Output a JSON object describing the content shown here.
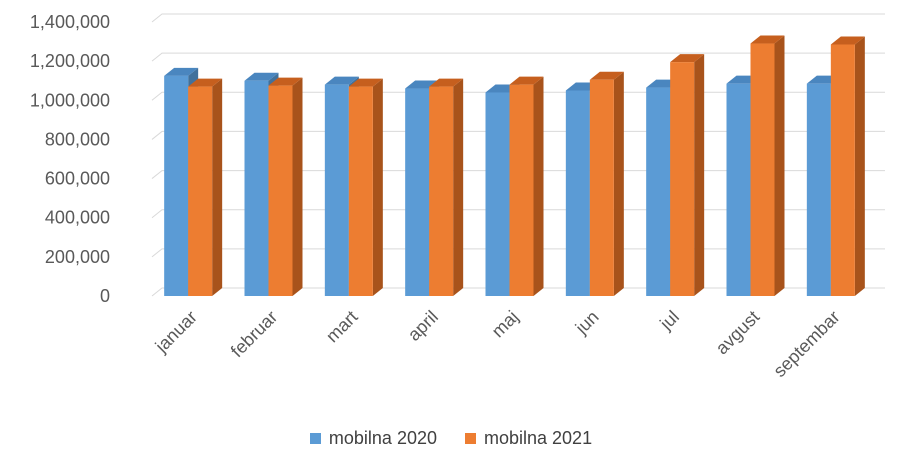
{
  "chart_data": {
    "type": "bar",
    "categories": [
      "januar",
      "februar",
      "mart",
      "april",
      "maj",
      "jun",
      "jul",
      "avgust",
      "septembar"
    ],
    "series": [
      {
        "name": "mobilna 2020",
        "color": "#5B9BD5",
        "side_color": "#41719C",
        "top_color": "#4A86BF",
        "values": [
          1125000,
          1100000,
          1080000,
          1060000,
          1040000,
          1050000,
          1065000,
          1085000,
          1085000
        ]
      },
      {
        "name": "mobilna 2021",
        "color": "#ED7D31",
        "side_color": "#A8531B",
        "top_color": "#C65F1E",
        "values": [
          1070000,
          1075000,
          1070000,
          1070000,
          1080000,
          1105000,
          1195000,
          1290000,
          1285000
        ]
      }
    ],
    "yticks": [
      "0",
      "200,000",
      "400,000",
      "600,000",
      "800,000",
      "1,000,000",
      "1,200,000",
      "1,400,000"
    ],
    "ylim": [
      0,
      1400000
    ],
    "grid": true,
    "legend_position": "bottom"
  }
}
